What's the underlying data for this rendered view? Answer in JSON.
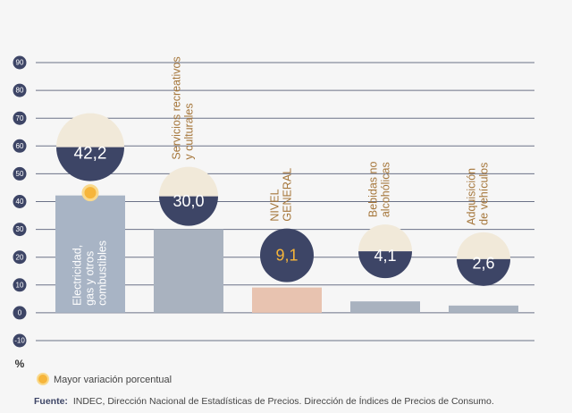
{
  "chart_data": {
    "type": "bar",
    "categories": [
      [
        "Electricidad,",
        "gas y otros",
        "combustibles"
      ],
      [
        "Servicios recreativos",
        "y culturales"
      ],
      [
        "NIVEL",
        "GENERAL"
      ],
      [
        "Bebidas no",
        "alcohólicas"
      ],
      [
        "Adquisición",
        "de vehículos"
      ]
    ],
    "values": [
      42.2,
      30.0,
      9.1,
      4.1,
      2.6
    ],
    "value_labels": [
      "42,2",
      "30,0",
      "9,1",
      "4,1",
      "2,6"
    ],
    "colors": [
      "#a8b4c5",
      "#a9b2bf",
      "#e8c3b0",
      "#a9b2bf",
      "#a9b2bf"
    ],
    "ylim": [
      -10,
      90
    ],
    "yticks": [
      -10,
      0,
      10,
      20,
      30,
      40,
      50,
      60,
      70,
      80,
      90
    ],
    "y_unit": "%",
    "grid": true,
    "legend": "Mayor variación porcentual",
    "source_label": "Fuente:",
    "source_text": "INDEC, Dirección Nacional de Estadísticas de Precios. Dirección de Índices de Precios de Consumo."
  }
}
